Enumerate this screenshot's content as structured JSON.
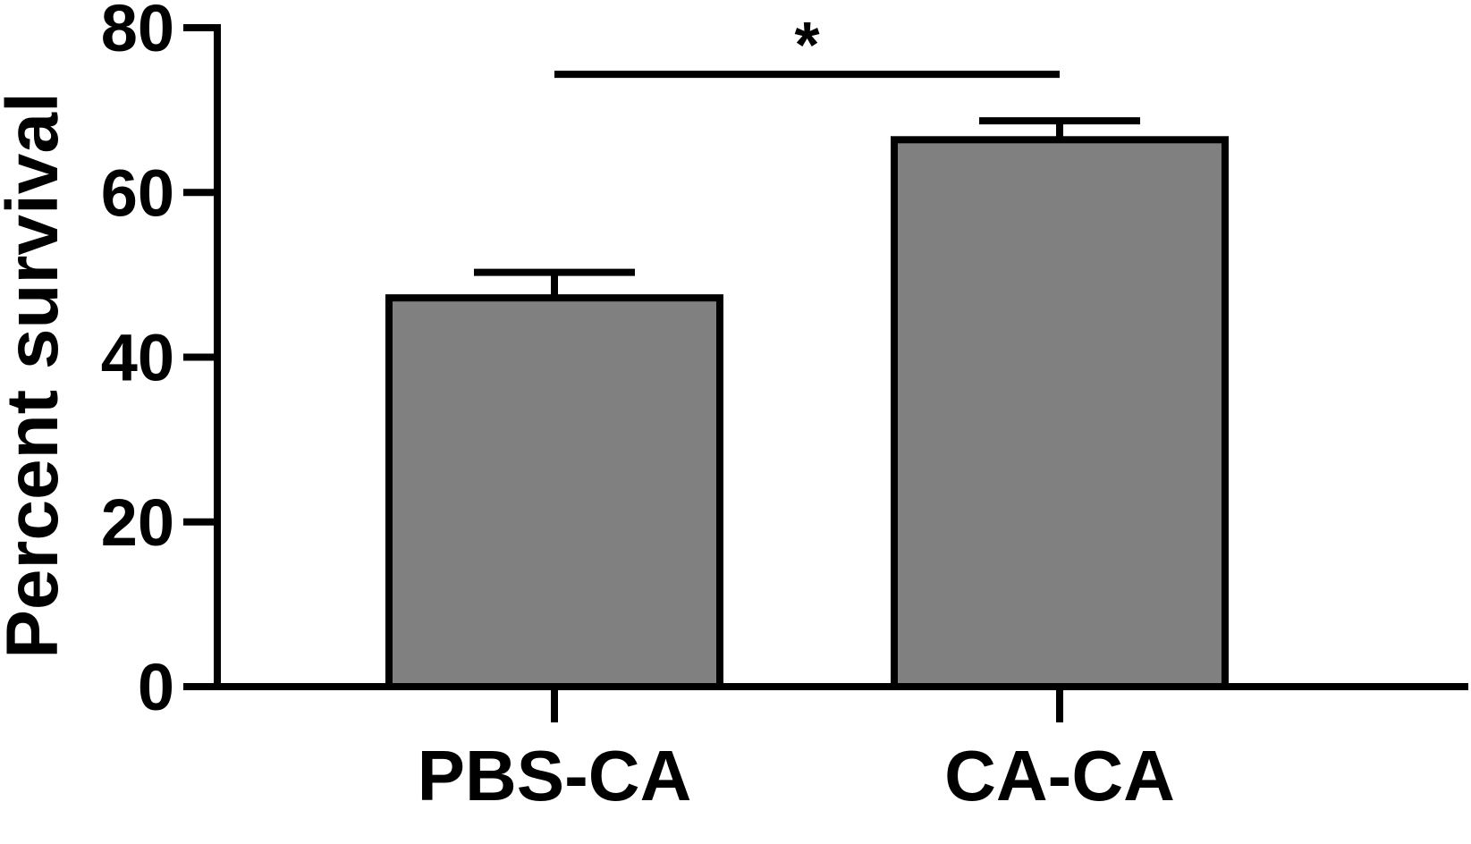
{
  "chart_data": {
    "type": "bar",
    "title": "",
    "xlabel": "",
    "ylabel": "Percent survival",
    "ylim": [
      0,
      80
    ],
    "yticks": [
      0,
      20,
      40,
      60,
      80
    ],
    "categories": [
      "PBS-CA",
      "CA-CA"
    ],
    "values": [
      47.2,
      66.4
    ],
    "error_upper": [
      50.3,
      68.7
    ],
    "grid": false,
    "bar_color": "#808080",
    "edge_color": "#000000",
    "significance": [
      {
        "from": "PBS-CA",
        "to": "CA-CA",
        "label": "*",
        "level": 75
      }
    ]
  }
}
